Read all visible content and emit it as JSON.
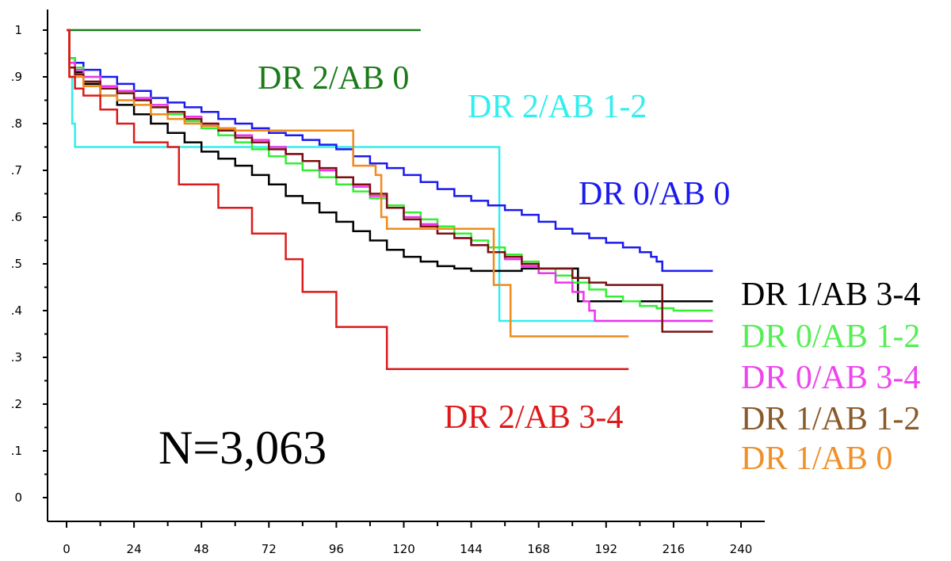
{
  "chart_data": {
    "type": "line",
    "step": true,
    "title": "",
    "xlabel": "",
    "ylabel": "",
    "xlim": [
      0,
      240
    ],
    "ylim": [
      0,
      1
    ],
    "x_ticks": [
      0,
      24,
      48,
      72,
      96,
      120,
      144,
      168,
      192,
      216,
      240
    ],
    "x_tick_labels": [
      "0",
      "24",
      "48",
      "72",
      "96",
      "120",
      "144",
      "168",
      "192",
      "216",
      "240"
    ],
    "y_ticks": [
      0,
      0.1,
      0.2,
      0.3,
      0.4,
      0.5,
      0.6,
      0.7,
      0.8,
      0.9,
      1
    ],
    "y_tick_labels": [
      "0",
      ".1",
      ".2",
      ".3",
      ".4",
      ".5",
      ".6",
      ".7",
      ".8",
      ".9",
      "1"
    ],
    "grid": false,
    "annotation": "N=3,063",
    "series": [
      {
        "name": "DR 2/AB 0",
        "color": "#1a7a1a",
        "x": [
          0,
          126
        ],
        "y": [
          1.0,
          1.0
        ]
      },
      {
        "name": "DR 2/AB 1-2",
        "color": "#33eeee",
        "x": [
          0,
          1,
          2,
          3,
          152,
          154,
          230
        ],
        "y": [
          1.0,
          0.9,
          0.8,
          0.75,
          0.75,
          0.378,
          0.378
        ]
      },
      {
        "name": "DR 0/AB 0",
        "color": "#1a1aee",
        "x": [
          0,
          1,
          3,
          6,
          12,
          18,
          24,
          30,
          36,
          42,
          48,
          54,
          60,
          66,
          72,
          78,
          84,
          90,
          96,
          102,
          108,
          114,
          120,
          126,
          132,
          138,
          144,
          150,
          156,
          162,
          168,
          174,
          180,
          186,
          192,
          198,
          204,
          208,
          210,
          212,
          230
        ],
        "y": [
          1.0,
          0.94,
          0.93,
          0.915,
          0.9,
          0.885,
          0.87,
          0.855,
          0.845,
          0.835,
          0.825,
          0.81,
          0.8,
          0.79,
          0.78,
          0.775,
          0.765,
          0.755,
          0.745,
          0.73,
          0.715,
          0.705,
          0.69,
          0.675,
          0.66,
          0.645,
          0.635,
          0.625,
          0.615,
          0.605,
          0.59,
          0.575,
          0.565,
          0.555,
          0.545,
          0.535,
          0.525,
          0.515,
          0.505,
          0.485,
          0.485
        ]
      },
      {
        "name": "DR 1/AB 3-4",
        "color": "#000000",
        "x": [
          0,
          1,
          3,
          6,
          12,
          18,
          24,
          30,
          36,
          42,
          48,
          54,
          60,
          66,
          72,
          78,
          84,
          90,
          96,
          102,
          108,
          114,
          120,
          126,
          132,
          138,
          144,
          152,
          162,
          172,
          180,
          182,
          230
        ],
        "y": [
          1.0,
          0.93,
          0.91,
          0.885,
          0.86,
          0.84,
          0.82,
          0.8,
          0.78,
          0.76,
          0.74,
          0.725,
          0.71,
          0.69,
          0.67,
          0.645,
          0.63,
          0.61,
          0.59,
          0.57,
          0.55,
          0.53,
          0.515,
          0.505,
          0.495,
          0.49,
          0.485,
          0.485,
          0.49,
          0.49,
          0.49,
          0.42,
          0.42
        ]
      },
      {
        "name": "DR 0/AB 1-2",
        "color": "#33ee33",
        "x": [
          0,
          1,
          3,
          6,
          12,
          18,
          24,
          30,
          36,
          42,
          48,
          54,
          60,
          66,
          72,
          78,
          84,
          90,
          96,
          102,
          108,
          114,
          120,
          126,
          132,
          138,
          144,
          150,
          156,
          162,
          168,
          174,
          180,
          186,
          192,
          198,
          204,
          210,
          216,
          222,
          230
        ],
        "y": [
          1.0,
          0.94,
          0.92,
          0.9,
          0.88,
          0.865,
          0.85,
          0.835,
          0.82,
          0.805,
          0.79,
          0.775,
          0.76,
          0.745,
          0.73,
          0.715,
          0.7,
          0.685,
          0.67,
          0.655,
          0.64,
          0.625,
          0.61,
          0.595,
          0.58,
          0.565,
          0.55,
          0.535,
          0.52,
          0.505,
          0.49,
          0.475,
          0.46,
          0.445,
          0.43,
          0.42,
          0.41,
          0.405,
          0.4,
          0.4,
          0.4
        ]
      },
      {
        "name": "DR 0/AB 3-4",
        "color": "#ee33ee",
        "x": [
          0,
          1,
          3,
          6,
          12,
          18,
          24,
          30,
          36,
          42,
          48,
          54,
          60,
          66,
          72,
          78,
          84,
          90,
          96,
          102,
          108,
          114,
          120,
          126,
          132,
          138,
          144,
          150,
          156,
          162,
          168,
          174,
          180,
          184,
          186,
          188,
          230
        ],
        "y": [
          1.0,
          0.93,
          0.915,
          0.9,
          0.88,
          0.87,
          0.855,
          0.84,
          0.825,
          0.815,
          0.8,
          0.79,
          0.775,
          0.765,
          0.75,
          0.735,
          0.72,
          0.7,
          0.685,
          0.665,
          0.645,
          0.62,
          0.6,
          0.585,
          0.565,
          0.555,
          0.54,
          0.525,
          0.51,
          0.495,
          0.48,
          0.46,
          0.44,
          0.42,
          0.4,
          0.378,
          0.378
        ]
      },
      {
        "name": "DR 1/AB 1-2",
        "color": "#7a1010",
        "x": [
          0,
          1,
          3,
          6,
          12,
          18,
          24,
          30,
          36,
          42,
          48,
          54,
          60,
          66,
          72,
          78,
          84,
          90,
          96,
          102,
          108,
          114,
          120,
          126,
          132,
          138,
          144,
          150,
          156,
          162,
          168,
          180,
          186,
          192,
          198,
          204,
          210,
          212,
          230
        ],
        "y": [
          1.0,
          0.92,
          0.905,
          0.89,
          0.875,
          0.865,
          0.85,
          0.835,
          0.825,
          0.81,
          0.8,
          0.785,
          0.77,
          0.76,
          0.745,
          0.735,
          0.72,
          0.705,
          0.685,
          0.67,
          0.65,
          0.62,
          0.595,
          0.58,
          0.565,
          0.555,
          0.54,
          0.525,
          0.515,
          0.5,
          0.49,
          0.47,
          0.46,
          0.455,
          0.455,
          0.455,
          0.455,
          0.355,
          0.355
        ]
      },
      {
        "name": "DR 1/AB 0",
        "color": "#f08a1a",
        "x": [
          0,
          1,
          6,
          12,
          18,
          24,
          30,
          36,
          42,
          48,
          54,
          60,
          66,
          72,
          78,
          84,
          90,
          96,
          100,
          102,
          104,
          110,
          112,
          114,
          120,
          126,
          132,
          138,
          144,
          150,
          152,
          154,
          156,
          158,
          200
        ],
        "y": [
          1.0,
          0.9,
          0.88,
          0.86,
          0.85,
          0.84,
          0.82,
          0.81,
          0.8,
          0.795,
          0.79,
          0.785,
          0.785,
          0.785,
          0.785,
          0.785,
          0.785,
          0.785,
          0.785,
          0.71,
          0.71,
          0.69,
          0.6,
          0.575,
          0.575,
          0.575,
          0.575,
          0.575,
          0.575,
          0.575,
          0.455,
          0.455,
          0.455,
          0.345,
          0.345
        ]
      },
      {
        "name": "DR 2/AB 3-4",
        "color": "#dd1a1a",
        "x": [
          0,
          1,
          3,
          6,
          12,
          18,
          24,
          36,
          40,
          48,
          54,
          60,
          66,
          72,
          78,
          84,
          90,
          96,
          102,
          108,
          114,
          120,
          150,
          200
        ],
        "y": [
          1.0,
          0.9,
          0.875,
          0.86,
          0.83,
          0.8,
          0.76,
          0.75,
          0.67,
          0.67,
          0.62,
          0.62,
          0.565,
          0.565,
          0.51,
          0.44,
          0.44,
          0.365,
          0.365,
          0.365,
          0.275,
          0.275,
          0.275,
          0.275
        ]
      }
    ],
    "labels": [
      {
        "text": "DR 2/AB 0",
        "color": "#1a7a1a"
      },
      {
        "text": "DR 2/AB 1-2",
        "color": "#33eeee"
      },
      {
        "text": "DR 0/AB 0",
        "color": "#1a1aee"
      },
      {
        "text": "DR 1/AB 3-4",
        "color": "#000000"
      },
      {
        "text": "DR 0/AB 1-2",
        "color": "#55ee55"
      },
      {
        "text": "DR 0/AB 3-4",
        "color": "#ee44ee"
      },
      {
        "text": "DR 1/AB 1-2",
        "color": "#8a5a2a"
      },
      {
        "text": "DR 1/AB 0",
        "color": "#f0902a"
      },
      {
        "text": "DR 2/AB 3-4",
        "color": "#dd1a1a"
      }
    ]
  }
}
